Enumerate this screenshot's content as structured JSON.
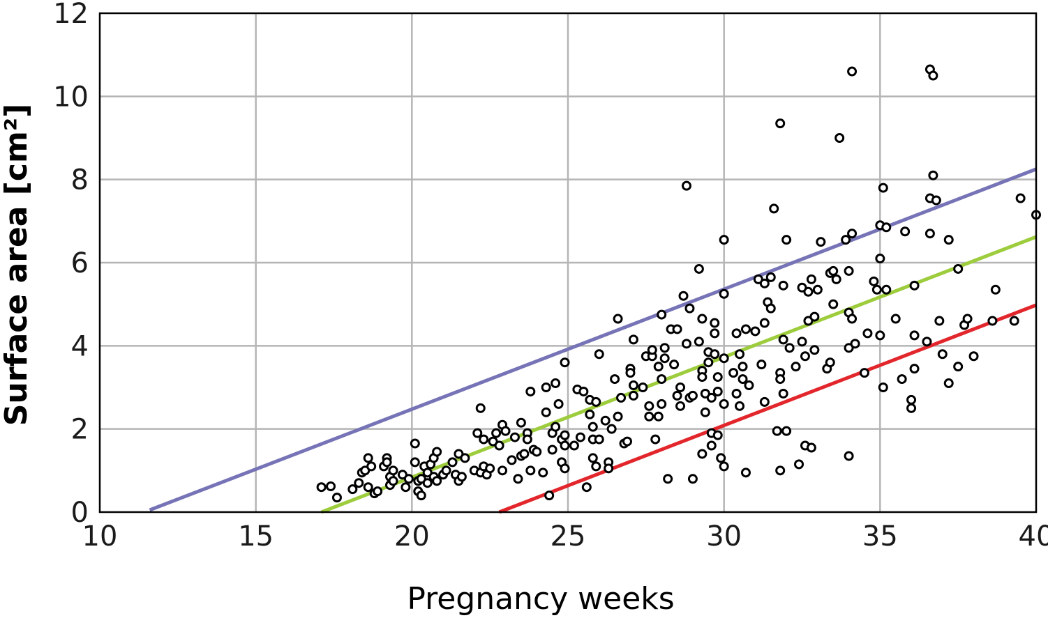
{
  "chart_data": {
    "type": "scatter",
    "xlabel": "Pregnancy weeks",
    "ylabel": "Surface area [cm²]",
    "xlim": [
      10,
      40
    ],
    "ylim": [
      0,
      12
    ],
    "xticks": [
      "10",
      "15",
      "20",
      "25",
      "30",
      "35",
      "40"
    ],
    "yticks": [
      "0",
      "2",
      "4",
      "6",
      "8",
      "10",
      "12"
    ],
    "grid": true,
    "lines": [
      {
        "color": "#7673b6",
        "x": [
          11.6,
          40.0
        ],
        "y": [
          0.05,
          8.25
        ]
      },
      {
        "color": "#9dcc3c",
        "x": [
          17.1,
          40.0
        ],
        "y": [
          0.0,
          6.62
        ]
      },
      {
        "color": "#e2262b",
        "x": [
          22.8,
          40.0
        ],
        "y": [
          0.0,
          4.98
        ]
      }
    ],
    "points": [
      [
        17.1,
        0.6
      ],
      [
        17.4,
        0.62
      ],
      [
        17.6,
        0.35
      ],
      [
        18.1,
        0.55
      ],
      [
        18.3,
        0.7
      ],
      [
        18.4,
        0.95
      ],
      [
        18.5,
        1.0
      ],
      [
        18.6,
        0.6
      ],
      [
        18.6,
        1.3
      ],
      [
        18.7,
        1.1
      ],
      [
        18.8,
        0.45
      ],
      [
        18.9,
        0.5
      ],
      [
        19.1,
        1.1
      ],
      [
        19.2,
        1.3
      ],
      [
        19.2,
        1.2
      ],
      [
        19.3,
        0.85
      ],
      [
        19.3,
        0.65
      ],
      [
        19.4,
        0.75
      ],
      [
        19.4,
        1.0
      ],
      [
        19.7,
        0.9
      ],
      [
        19.8,
        0.6
      ],
      [
        19.9,
        0.8
      ],
      [
        20.1,
        1.65
      ],
      [
        20.1,
        1.2
      ],
      [
        20.2,
        0.75
      ],
      [
        20.2,
        0.5
      ],
      [
        20.3,
        0.4
      ],
      [
        20.3,
        0.8
      ],
      [
        20.4,
        1.1
      ],
      [
        20.5,
        0.7
      ],
      [
        20.5,
        0.95
      ],
      [
        20.6,
        1.15
      ],
      [
        20.7,
        1.3
      ],
      [
        20.7,
        0.85
      ],
      [
        20.8,
        1.45
      ],
      [
        20.8,
        0.75
      ],
      [
        21.0,
        0.9
      ],
      [
        21.1,
        1.0
      ],
      [
        21.3,
        1.2
      ],
      [
        21.4,
        0.9
      ],
      [
        21.5,
        1.4
      ],
      [
        21.5,
        0.75
      ],
      [
        21.6,
        0.85
      ],
      [
        21.7,
        1.3
      ],
      [
        22.0,
        1.0
      ],
      [
        22.1,
        1.9
      ],
      [
        22.2,
        2.5
      ],
      [
        22.2,
        0.95
      ],
      [
        22.3,
        1.1
      ],
      [
        22.3,
        1.75
      ],
      [
        22.4,
        0.9
      ],
      [
        22.5,
        1.05
      ],
      [
        22.6,
        1.7
      ],
      [
        22.7,
        1.9
      ],
      [
        22.8,
        1.6
      ],
      [
        22.9,
        2.1
      ],
      [
        22.9,
        1.0
      ],
      [
        23.0,
        1.95
      ],
      [
        23.2,
        1.25
      ],
      [
        23.3,
        1.8
      ],
      [
        23.4,
        0.8
      ],
      [
        23.5,
        2.15
      ],
      [
        23.5,
        1.35
      ],
      [
        23.6,
        1.4
      ],
      [
        23.7,
        1.9
      ],
      [
        23.7,
        1.75
      ],
      [
        23.8,
        2.9
      ],
      [
        23.8,
        1.0
      ],
      [
        23.9,
        1.5
      ],
      [
        24.0,
        1.45
      ],
      [
        24.2,
        0.95
      ],
      [
        24.3,
        3.0
      ],
      [
        24.3,
        2.4
      ],
      [
        24.4,
        0.4
      ],
      [
        24.5,
        1.9
      ],
      [
        24.5,
        1.5
      ],
      [
        24.6,
        3.1
      ],
      [
        24.6,
        2.05
      ],
      [
        24.7,
        2.6
      ],
      [
        24.8,
        1.75
      ],
      [
        24.8,
        1.2
      ],
      [
        24.9,
        1.6
      ],
      [
        24.9,
        3.6
      ],
      [
        24.9,
        1.05
      ],
      [
        24.9,
        1.85
      ],
      [
        25.2,
        1.6
      ],
      [
        25.3,
        2.95
      ],
      [
        25.4,
        1.8
      ],
      [
        25.5,
        2.9
      ],
      [
        25.6,
        0.6
      ],
      [
        25.7,
        2.7
      ],
      [
        25.7,
        2.35
      ],
      [
        25.8,
        1.75
      ],
      [
        25.8,
        2.05
      ],
      [
        25.8,
        1.3
      ],
      [
        25.9,
        1.1
      ],
      [
        25.9,
        2.65
      ],
      [
        26.0,
        1.75
      ],
      [
        26.0,
        3.8
      ],
      [
        26.2,
        2.2
      ],
      [
        26.3,
        1.2
      ],
      [
        26.3,
        1.05
      ],
      [
        26.4,
        2.0
      ],
      [
        26.5,
        3.2
      ],
      [
        26.6,
        4.65
      ],
      [
        26.6,
        2.3
      ],
      [
        26.7,
        2.75
      ],
      [
        26.8,
        1.65
      ],
      [
        26.9,
        1.7
      ],
      [
        27.0,
        3.45
      ],
      [
        27.0,
        3.35
      ],
      [
        27.1,
        3.05
      ],
      [
        27.1,
        2.8
      ],
      [
        27.1,
        4.15
      ],
      [
        27.4,
        3.0
      ],
      [
        27.5,
        3.75
      ],
      [
        27.6,
        2.3
      ],
      [
        27.6,
        2.55
      ],
      [
        27.7,
        3.75
      ],
      [
        27.7,
        3.9
      ],
      [
        27.8,
        1.75
      ],
      [
        27.9,
        3.5
      ],
      [
        27.9,
        2.3
      ],
      [
        28.0,
        3.2
      ],
      [
        28.0,
        4.75
      ],
      [
        28.0,
        2.6
      ],
      [
        28.1,
        3.95
      ],
      [
        28.1,
        3.7
      ],
      [
        28.2,
        0.8
      ],
      [
        28.3,
        4.4
      ],
      [
        28.4,
        3.55
      ],
      [
        28.5,
        4.4
      ],
      [
        28.5,
        2.8
      ],
      [
        28.6,
        3.0
      ],
      [
        28.6,
        2.55
      ],
      [
        28.7,
        5.2
      ],
      [
        28.8,
        4.05
      ],
      [
        28.8,
        7.85
      ],
      [
        28.9,
        2.75
      ],
      [
        28.9,
        4.9
      ],
      [
        29.0,
        2.8
      ],
      [
        29.0,
        0.8
      ],
      [
        29.2,
        5.85
      ],
      [
        29.2,
        4.1
      ],
      [
        29.3,
        4.65
      ],
      [
        29.3,
        3.4
      ],
      [
        29.3,
        3.25
      ],
      [
        29.3,
        1.4
      ],
      [
        29.4,
        2.85
      ],
      [
        29.4,
        2.4
      ],
      [
        29.5,
        3.6
      ],
      [
        29.5,
        3.85
      ],
      [
        29.6,
        2.75
      ],
      [
        29.6,
        1.6
      ],
      [
        29.6,
        1.9
      ],
      [
        29.7,
        4.55
      ],
      [
        29.7,
        4.3
      ],
      [
        29.7,
        3.8
      ],
      [
        29.8,
        3.25
      ],
      [
        29.8,
        1.85
      ],
      [
        29.8,
        2.9
      ],
      [
        29.9,
        1.3
      ],
      [
        30.0,
        6.55
      ],
      [
        30.0,
        3.7
      ],
      [
        30.0,
        2.6
      ],
      [
        30.0,
        1.1
      ],
      [
        30.0,
        5.25
      ],
      [
        30.3,
        3.35
      ],
      [
        30.4,
        2.85
      ],
      [
        30.4,
        4.3
      ],
      [
        30.5,
        3.8
      ],
      [
        30.5,
        2.55
      ],
      [
        30.6,
        3.5
      ],
      [
        30.6,
        3.2
      ],
      [
        30.7,
        4.4
      ],
      [
        30.7,
        0.95
      ],
      [
        30.8,
        3.05
      ],
      [
        31.0,
        4.35
      ],
      [
        31.1,
        5.6
      ],
      [
        31.2,
        3.55
      ],
      [
        31.3,
        2.65
      ],
      [
        31.3,
        4.55
      ],
      [
        31.3,
        5.5
      ],
      [
        31.4,
        5.05
      ],
      [
        31.5,
        4.9
      ],
      [
        31.5,
        5.65
      ],
      [
        31.6,
        7.3
      ],
      [
        31.7,
        1.95
      ],
      [
        31.8,
        3.35
      ],
      [
        31.8,
        3.2
      ],
      [
        31.8,
        9.35
      ],
      [
        31.8,
        1.0
      ],
      [
        31.9,
        5.45
      ],
      [
        31.9,
        4.15
      ],
      [
        31.9,
        2.85
      ],
      [
        32.0,
        6.55
      ],
      [
        32.0,
        1.95
      ],
      [
        32.1,
        3.95
      ],
      [
        32.3,
        3.5
      ],
      [
        32.4,
        1.15
      ],
      [
        32.5,
        5.4
      ],
      [
        32.5,
        4.1
      ],
      [
        32.6,
        1.6
      ],
      [
        32.6,
        3.75
      ],
      [
        32.7,
        5.3
      ],
      [
        32.7,
        4.6
      ],
      [
        32.8,
        1.55
      ],
      [
        32.8,
        5.6
      ],
      [
        32.9,
        3.9
      ],
      [
        32.9,
        4.7
      ],
      [
        33.0,
        5.35
      ],
      [
        33.1,
        6.5
      ],
      [
        33.3,
        3.45
      ],
      [
        33.4,
        3.6
      ],
      [
        33.4,
        5.75
      ],
      [
        33.5,
        5.8
      ],
      [
        33.5,
        5.0
      ],
      [
        33.6,
        5.6
      ],
      [
        33.7,
        9.0
      ],
      [
        33.9,
        6.55
      ],
      [
        34.0,
        1.35
      ],
      [
        34.0,
        3.95
      ],
      [
        34.0,
        4.8
      ],
      [
        34.0,
        5.8
      ],
      [
        34.1,
        6.7
      ],
      [
        34.1,
        4.65
      ],
      [
        34.1,
        10.6
      ],
      [
        34.2,
        4.05
      ],
      [
        34.5,
        3.35
      ],
      [
        34.6,
        4.3
      ],
      [
        34.8,
        5.55
      ],
      [
        34.9,
        5.35
      ],
      [
        35.0,
        6.9
      ],
      [
        35.0,
        6.1
      ],
      [
        35.0,
        4.25
      ],
      [
        35.1,
        7.8
      ],
      [
        35.1,
        3.0
      ],
      [
        35.2,
        6.85
      ],
      [
        35.2,
        5.35
      ],
      [
        35.5,
        4.65
      ],
      [
        35.7,
        3.2
      ],
      [
        35.8,
        6.75
      ],
      [
        36.0,
        2.5
      ],
      [
        36.0,
        2.7
      ],
      [
        36.1,
        3.45
      ],
      [
        36.1,
        4.25
      ],
      [
        36.1,
        5.45
      ],
      [
        36.5,
        4.1
      ],
      [
        36.6,
        7.55
      ],
      [
        36.6,
        6.7
      ],
      [
        36.6,
        10.65
      ],
      [
        36.7,
        8.1
      ],
      [
        36.7,
        10.5
      ],
      [
        36.8,
        7.5
      ],
      [
        36.9,
        4.6
      ],
      [
        37.0,
        3.8
      ],
      [
        37.2,
        3.1
      ],
      [
        37.2,
        6.55
      ],
      [
        37.5,
        3.5
      ],
      [
        37.5,
        5.85
      ],
      [
        37.7,
        4.5
      ],
      [
        37.8,
        4.65
      ],
      [
        38.0,
        3.75
      ],
      [
        38.6,
        4.6
      ],
      [
        38.7,
        5.35
      ],
      [
        39.3,
        4.6
      ],
      [
        39.5,
        7.55
      ],
      [
        40.0,
        7.15
      ]
    ]
  }
}
